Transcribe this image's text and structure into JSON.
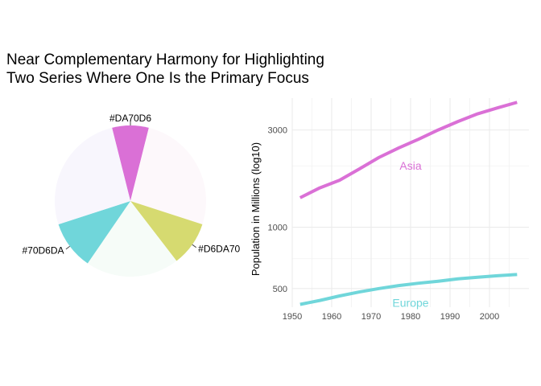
{
  "title_line1": "Near Complementary Harmony for Highlighting",
  "title_line2": "Two Series Where One Is the Primary Focus",
  "chart_data": [
    {
      "type": "pie",
      "slices": [
        {
          "label": "#DA70D6",
          "value": 0.9,
          "color": "#DA70D6",
          "labeled": true
        },
        {
          "label": "",
          "value": 3.0,
          "color": "#fdf8fb",
          "labeled": false
        },
        {
          "label": "#D6DA70",
          "value": 1.1,
          "color": "#D6DA70",
          "labeled": true
        },
        {
          "label": "",
          "value": 2.3,
          "color": "#f6fcf8",
          "labeled": false
        },
        {
          "label": "#70D6DA",
          "value": 1.2,
          "color": "#70D6DA",
          "labeled": true
        },
        {
          "label": "",
          "value": 3.0,
          "color": "#f8f6fd",
          "labeled": false
        }
      ]
    },
    {
      "type": "line",
      "xlabel": "",
      "ylabel": "Population in Millions (log10)",
      "log_y": true,
      "xlim": [
        1950,
        2010
      ],
      "ylim": [
        405,
        4300
      ],
      "xticks": [
        "1950",
        "1960",
        "1970",
        "1980",
        "1990",
        "2000"
      ],
      "yticks": [
        "500",
        "1000",
        "3000"
      ],
      "grid": true,
      "series": [
        {
          "name": "Asia",
          "color": "#DA70D6",
          "x": [
            1952,
            1957,
            1962,
            1967,
            1972,
            1977,
            1982,
            1987,
            1992,
            1997,
            2002,
            2007
          ],
          "y": [
            1395,
            1560,
            1700,
            1930,
            2200,
            2450,
            2700,
            3000,
            3300,
            3600,
            3850,
            4100
          ]
        },
        {
          "name": "Europe",
          "color": "#70D6DA",
          "x": [
            1952,
            1957,
            1962,
            1967,
            1972,
            1977,
            1982,
            1987,
            1992,
            1997,
            2002,
            2007
          ],
          "y": [
            418,
            437,
            460,
            481,
            500,
            517,
            531,
            543,
            558,
            568,
            578,
            586
          ]
        }
      ],
      "annotations": [
        {
          "text": "Asia",
          "x": 1980,
          "y": 2000,
          "color": "#DA70D6"
        },
        {
          "text": "Europe",
          "x": 1980,
          "y": 425,
          "color": "#70D6DA"
        }
      ]
    }
  ]
}
